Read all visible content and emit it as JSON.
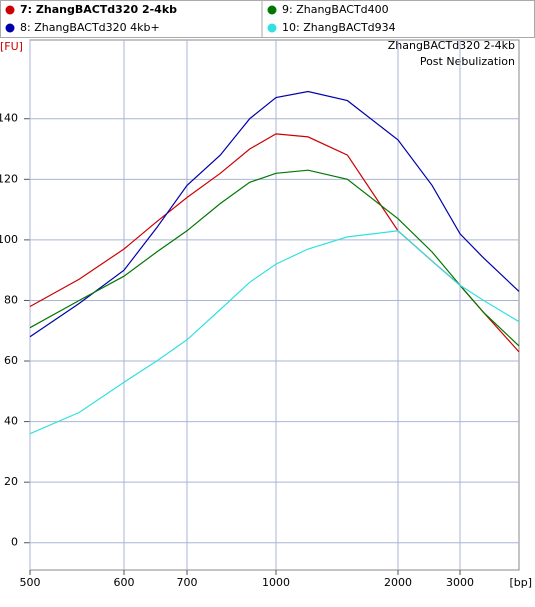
{
  "chart_data": {
    "type": "line",
    "title": "ZhangBACTd320 2-4kb",
    "subtitle": "Post Nebulization",
    "x_label": "[bp]",
    "y_label": "[FU]",
    "x": [
      500,
      550,
      600,
      650,
      700,
      800,
      900,
      1000,
      1200,
      1500,
      2000,
      2500,
      3000,
      3500,
      4400
    ],
    "series": [
      {
        "name": "7: ZhangBACTd320 2-4kb",
        "color": "#cc0000",
        "values": [
          78,
          87,
          97,
          106,
          114,
          122,
          130,
          135,
          134,
          128,
          103,
          93,
          85,
          76,
          63
        ]
      },
      {
        "name": "8: ZhangBACTd320 4kb+",
        "color": "#0000aa",
        "values": [
          68,
          79,
          90,
          104,
          118,
          128,
          140,
          147,
          149,
          146,
          133,
          118,
          102,
          94,
          83
        ]
      },
      {
        "name": "9: ZhangBACTd400",
        "color": "#007700",
        "values": [
          71,
          80,
          88,
          96,
          103,
          112,
          119,
          122,
          123,
          120,
          107,
          96,
          85,
          76,
          65
        ]
      },
      {
        "name": "10: ZhangBACTd934",
        "color": "#33e0e0",
        "values": [
          36,
          43,
          53,
          60,
          67,
          77,
          86,
          92,
          97,
          101,
          103,
          93,
          85,
          80,
          73
        ]
      }
    ],
    "xlim": [
      500,
      4400
    ],
    "xticks": [
      500,
      600,
      700,
      1000,
      2000,
      3000
    ],
    "ylim": [
      -9,
      166
    ],
    "yticks": [
      0,
      20,
      40,
      60,
      80,
      100,
      120,
      140
    ],
    "grid": true
  }
}
